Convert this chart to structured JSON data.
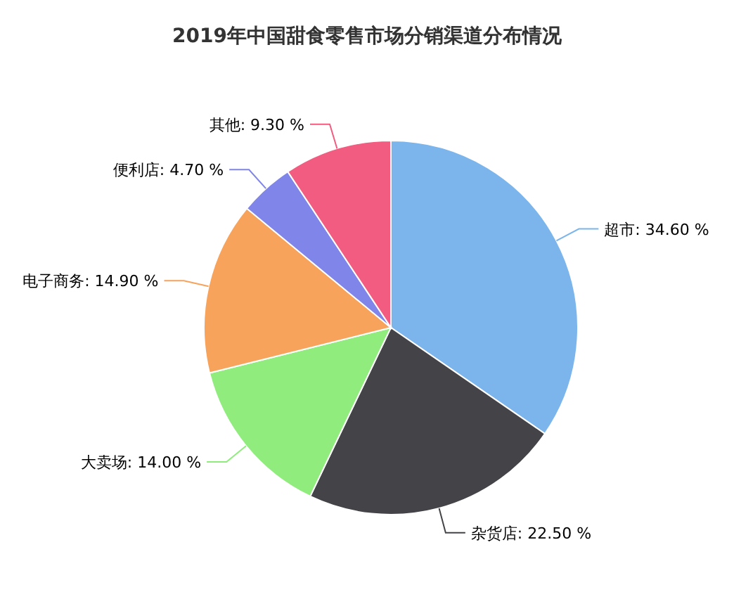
{
  "chart_data": {
    "type": "pie",
    "title": "2019年中国甜食零售市场分销渠道分布情况",
    "categories": [
      "超市",
      "杂货店",
      "大卖场",
      "电子商务",
      "便利店",
      "其他"
    ],
    "values": [
      34.6,
      22.5,
      14.0,
      14.9,
      4.7,
      9.3
    ],
    "value_labels": [
      "34.60 %",
      "22.50 %",
      "14.00 %",
      "14.90 %",
      "4.70 %",
      "9.30 %"
    ],
    "colors": [
      "#7cb5ec",
      "#434348",
      "#90ed7d",
      "#f7a35c",
      "#8085e9",
      "#f15c80"
    ],
    "legend": false
  }
}
